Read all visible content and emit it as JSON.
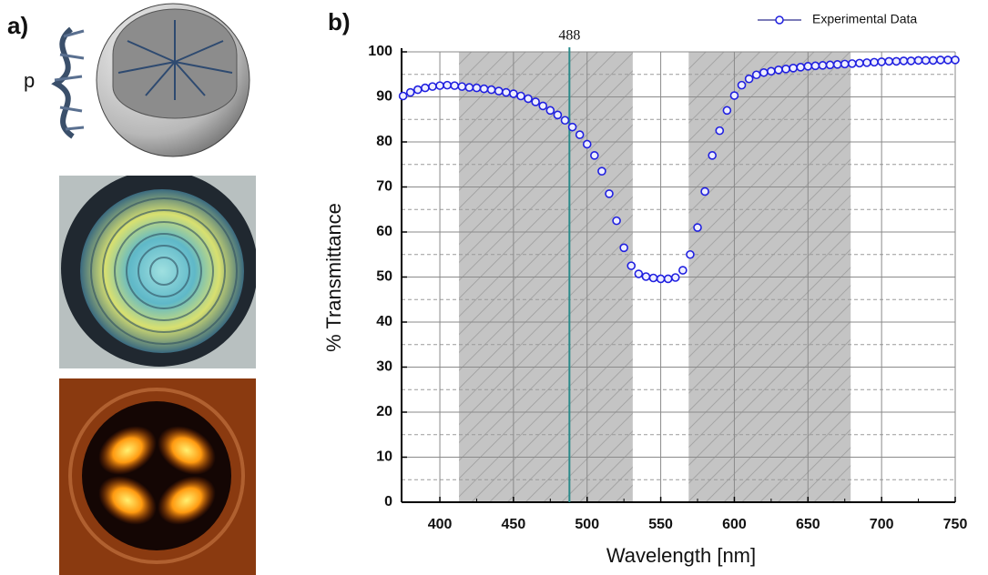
{
  "figure": {
    "panel_a_label": "a)",
    "panel_b_label": "b)",
    "pitch_label": "p"
  },
  "chart_data": {
    "type": "scatter",
    "xlabel": "Wavelength [nm]",
    "ylabel": "% Transmittance",
    "xlim": [
      374,
      750
    ],
    "ylim": [
      0,
      100
    ],
    "xticks": [
      400,
      450,
      500,
      550,
      600,
      650,
      700,
      750
    ],
    "yticks": [
      0,
      10,
      20,
      30,
      40,
      50,
      60,
      70,
      80,
      90,
      100
    ],
    "grid": true,
    "minor_grid": true,
    "legend": "upper right",
    "shaded_regions": [
      [
        413,
        531
      ],
      [
        569,
        679
      ]
    ],
    "vline": 488,
    "vline_color": "#2a8a8a",
    "series": [
      {
        "name": "Experimental Data",
        "color": "#2020e0",
        "x": [
          375,
          380,
          385,
          390,
          395,
          400,
          405,
          410,
          415,
          420,
          425,
          430,
          435,
          440,
          445,
          450,
          455,
          460,
          465,
          470,
          475,
          480,
          485,
          490,
          495,
          500,
          505,
          510,
          515,
          520,
          525,
          530,
          535,
          540,
          545,
          550,
          555,
          560,
          565,
          570,
          575,
          580,
          585,
          590,
          595,
          600,
          605,
          610,
          615,
          620,
          625,
          630,
          635,
          640,
          645,
          650,
          655,
          660,
          665,
          670,
          675,
          680,
          685,
          690,
          695,
          700,
          705,
          710,
          715,
          720,
          725,
          730,
          735,
          740,
          745,
          750
        ],
        "values": [
          90.2,
          91,
          91.6,
          92,
          92.3,
          92.5,
          92.6,
          92.5,
          92.3,
          92.1,
          92,
          91.8,
          91.6,
          91.3,
          91,
          90.7,
          90.2,
          89.6,
          88.9,
          88,
          87,
          86,
          84.8,
          83.3,
          81.6,
          79.5,
          77,
          73.5,
          68.5,
          62.5,
          56.5,
          52.5,
          50.7,
          50.1,
          49.8,
          49.6,
          49.6,
          49.9,
          51.5,
          55,
          61,
          69,
          77,
          82.5,
          87,
          90.3,
          92.6,
          94,
          94.9,
          95.4,
          95.7,
          96,
          96.2,
          96.4,
          96.6,
          96.8,
          96.9,
          97,
          97.1,
          97.2,
          97.3,
          97.4,
          97.5,
          97.6,
          97.7,
          97.8,
          97.9,
          97.9,
          98,
          98,
          98.1,
          98.1,
          98.1,
          98.2,
          98.2,
          98.2
        ]
      }
    ]
  }
}
